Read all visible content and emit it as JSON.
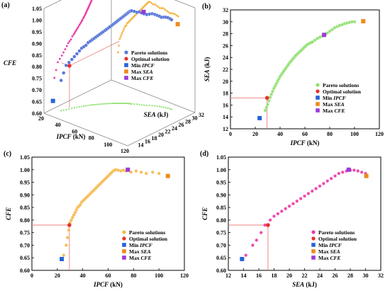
{
  "colors": {
    "green": "#8ee06e",
    "orange": "#f5b84a",
    "pink": "#ec3aa6",
    "optimal": "#e8312a",
    "min_ipcf": "#2563d9",
    "max_sea": "#f08a1c",
    "max_cfe": "#9b3ad6",
    "blue_points": "#5a78d8",
    "guide": "#ee7c7c"
  },
  "legend": [
    "Pareto solutions",
    "Optimal solution",
    "Min IPCF",
    "Max SEA",
    "Max CFE"
  ],
  "legend_italic_prefix": [
    "",
    "",
    "Min ",
    "Max ",
    "Max "
  ],
  "legend_italic_word": [
    "",
    "",
    "IPCF",
    "SEA",
    "CFE"
  ],
  "chart_data": [
    {
      "panel": "(a)",
      "type": "scatter",
      "xlabel": "IPCF (kN)",
      "ylabel": "SEA (kJ)",
      "zlabel": "CFE",
      "x_ticks": [
        "20",
        "40",
        "60",
        "80",
        "100",
        "120"
      ],
      "y_ticks": [
        "12",
        "14",
        "16",
        "18",
        "20",
        "22",
        "24",
        "26",
        "28",
        "30",
        "32"
      ],
      "z_ticks": [
        "0.60",
        "0.65",
        "0.70",
        "0.75",
        "0.80",
        "0.85",
        "0.90",
        "0.95",
        "1.00",
        "1.05"
      ],
      "optimal": {
        "x": 29.5,
        "y": 17.2,
        "z": 0.78
      },
      "min_ipcf": {
        "x": 23.5,
        "y": 13.8,
        "z": 0.645
      },
      "max_sea": {
        "x": 107,
        "y": 30.1,
        "z": 0.975
      },
      "max_cfe": {
        "x": 75.5,
        "y": 27.8,
        "z": 1.0
      }
    },
    {
      "panel": "(b)",
      "type": "scatter",
      "xlabel": "IPCF (kN)",
      "ylabel": "SEA (kJ)",
      "xlim": [
        0,
        120
      ],
      "ylim": [
        12,
        32
      ],
      "x_ticks": [
        0,
        20,
        40,
        60,
        80,
        100,
        120
      ],
      "y_ticks": [
        12,
        14,
        16,
        18,
        20,
        22,
        24,
        26,
        28,
        30,
        32
      ],
      "pareto": [
        [
          28,
          15.1
        ],
        [
          29,
          15.6
        ],
        [
          30,
          16.1
        ],
        [
          31,
          16.7
        ],
        [
          32,
          17.3
        ],
        [
          33,
          17.8
        ],
        [
          34,
          18.3
        ],
        [
          35,
          18.8
        ],
        [
          36,
          19.2
        ],
        [
          37,
          19.6
        ],
        [
          38,
          20.0
        ],
        [
          39,
          20.4
        ],
        [
          40,
          20.8
        ],
        [
          41,
          21.1
        ],
        [
          42,
          21.4
        ],
        [
          43,
          21.7
        ],
        [
          44,
          22.0
        ],
        [
          45,
          22.3
        ],
        [
          46,
          22.6
        ],
        [
          47,
          22.9
        ],
        [
          48,
          23.2
        ],
        [
          49,
          23.4
        ],
        [
          50,
          23.7
        ],
        [
          51,
          23.9
        ],
        [
          52,
          24.2
        ],
        [
          53,
          24.4
        ],
        [
          54,
          24.6
        ],
        [
          55,
          24.8
        ],
        [
          56,
          25.0
        ],
        [
          57,
          25.2
        ],
        [
          58,
          25.4
        ],
        [
          59,
          25.6
        ],
        [
          60,
          25.8
        ],
        [
          61,
          26.0
        ],
        [
          62,
          26.2
        ],
        [
          63,
          26.3
        ],
        [
          64,
          26.4
        ],
        [
          65,
          26.5
        ],
        [
          66,
          26.6
        ],
        [
          68,
          26.9
        ],
        [
          70,
          27.2
        ],
        [
          72,
          27.4
        ],
        [
          74,
          27.6
        ],
        [
          76,
          27.8
        ],
        [
          78,
          28.1
        ],
        [
          80,
          28.4
        ],
        [
          82,
          28.7
        ],
        [
          84,
          29.0
        ],
        [
          86,
          29.2
        ],
        [
          88,
          29.4
        ],
        [
          90,
          29.5
        ],
        [
          92,
          29.7
        ],
        [
          94,
          29.8
        ],
        [
          96,
          29.9
        ],
        [
          98,
          30.0
        ],
        [
          100,
          30.0
        ]
      ],
      "optimal": [
        29.5,
        17.2
      ],
      "min_ipcf": [
        23.5,
        13.8
      ],
      "max_sea": [
        107,
        30.1
      ],
      "max_cfe": [
        75.5,
        27.8
      ]
    },
    {
      "panel": "(c)",
      "type": "scatter",
      "xlabel": "IPCF (kN)",
      "ylabel": "CFE",
      "xlim": [
        0,
        120
      ],
      "ylim": [
        0.6,
        1.05
      ],
      "x_ticks": [
        0,
        20,
        40,
        60,
        80,
        100,
        120
      ],
      "y_ticks": [
        "0.60",
        "0.65",
        "0.70",
        "0.75",
        "0.80",
        "0.85",
        "0.90",
        "0.95",
        "1.00",
        "1.05"
      ],
      "pareto": [
        [
          25,
          0.66
        ],
        [
          27,
          0.7
        ],
        [
          28,
          0.73
        ],
        [
          29,
          0.76
        ],
        [
          30,
          0.79
        ],
        [
          31,
          0.8
        ],
        [
          32,
          0.81
        ],
        [
          33,
          0.82
        ],
        [
          34,
          0.83
        ],
        [
          35,
          0.84
        ],
        [
          36,
          0.85
        ],
        [
          37,
          0.855
        ],
        [
          38,
          0.86
        ],
        [
          39,
          0.87
        ],
        [
          40,
          0.875
        ],
        [
          41,
          0.88
        ],
        [
          42,
          0.885
        ],
        [
          43,
          0.89
        ],
        [
          44,
          0.895
        ],
        [
          45,
          0.9
        ],
        [
          46,
          0.905
        ],
        [
          47,
          0.91
        ],
        [
          48,
          0.915
        ],
        [
          49,
          0.92
        ],
        [
          50,
          0.925
        ],
        [
          51,
          0.93
        ],
        [
          52,
          0.935
        ],
        [
          53,
          0.94
        ],
        [
          54,
          0.945
        ],
        [
          55,
          0.95
        ],
        [
          56,
          0.955
        ],
        [
          57,
          0.96
        ],
        [
          58,
          0.965
        ],
        [
          59,
          0.97
        ],
        [
          60,
          0.975
        ],
        [
          61,
          0.98
        ],
        [
          62,
          0.985
        ],
        [
          63,
          0.99
        ],
        [
          64,
          0.995
        ],
        [
          65,
          0.998
        ],
        [
          66,
          1.0
        ],
        [
          68,
          0.998
        ],
        [
          70,
          0.995
        ],
        [
          72,
          0.998
        ],
        [
          74,
          0.995
        ],
        [
          78,
          0.99
        ],
        [
          82,
          0.995
        ],
        [
          86,
          0.99
        ],
        [
          90,
          0.985
        ],
        [
          95,
          0.99
        ],
        [
          100,
          0.985
        ]
      ],
      "optimal": [
        29.5,
        0.78
      ],
      "min_ipcf": [
        23.5,
        0.645
      ],
      "max_sea": [
        107,
        0.975
      ],
      "max_cfe": [
        75.5,
        1.0
      ]
    },
    {
      "panel": "(d)",
      "type": "scatter",
      "xlabel": "SEA (kJ)",
      "ylabel": "CFE",
      "xlim": [
        12,
        32
      ],
      "ylim": [
        0.6,
        1.05
      ],
      "x_ticks": [
        12,
        14,
        16,
        18,
        20,
        22,
        24,
        26,
        28,
        30,
        32
      ],
      "y_ticks": [
        "0.60",
        "0.65",
        "0.70",
        "0.75",
        "0.80",
        "0.85",
        "0.90",
        "0.95",
        "1.00",
        "1.05"
      ],
      "pareto": [
        [
          14.3,
          0.66
        ],
        [
          15.2,
          0.7
        ],
        [
          15.7,
          0.72
        ],
        [
          16.3,
          0.75
        ],
        [
          16.8,
          0.78
        ],
        [
          17.5,
          0.8
        ],
        [
          18.0,
          0.815
        ],
        [
          18.5,
          0.825
        ],
        [
          19.0,
          0.835
        ],
        [
          19.5,
          0.845
        ],
        [
          20.0,
          0.855
        ],
        [
          20.5,
          0.865
        ],
        [
          21.0,
          0.875
        ],
        [
          21.5,
          0.885
        ],
        [
          22.0,
          0.895
        ],
        [
          22.5,
          0.905
        ],
        [
          23.0,
          0.915
        ],
        [
          23.5,
          0.925
        ],
        [
          24.0,
          0.935
        ],
        [
          24.5,
          0.945
        ],
        [
          25.0,
          0.955
        ],
        [
          25.5,
          0.965
        ],
        [
          26.0,
          0.975
        ],
        [
          26.5,
          0.985
        ],
        [
          27.0,
          0.99
        ],
        [
          27.5,
          0.995
        ],
        [
          28.0,
          0.998
        ],
        [
          28.5,
          0.998
        ],
        [
          29.0,
          0.995
        ],
        [
          29.5,
          0.99
        ],
        [
          30.0,
          0.985
        ]
      ],
      "optimal": [
        17.2,
        0.78
      ],
      "min_ipcf": [
        13.8,
        0.645
      ],
      "max_sea": [
        30.1,
        0.975
      ],
      "max_cfe": [
        27.8,
        1.0
      ]
    }
  ]
}
